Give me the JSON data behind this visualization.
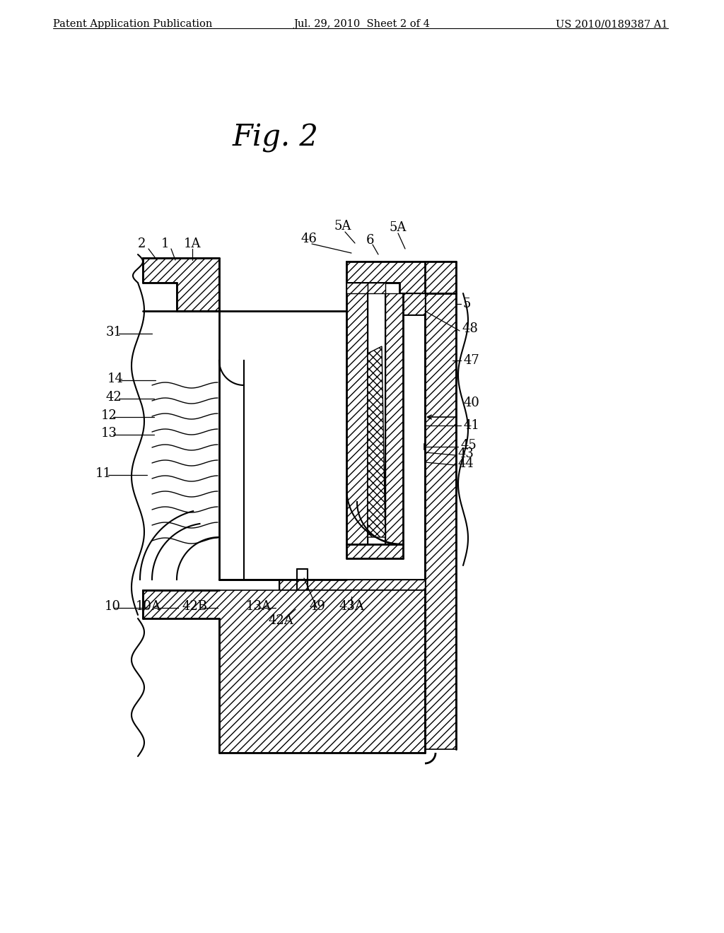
{
  "bg_color": "#ffffff",
  "line_color": "#000000",
  "header_left": "Patent Application Publication",
  "header_mid": "Jul. 29, 2010  Sheet 2 of 4",
  "header_right": "US 2010/0189387 A1",
  "fig_label": "Fig. 2"
}
